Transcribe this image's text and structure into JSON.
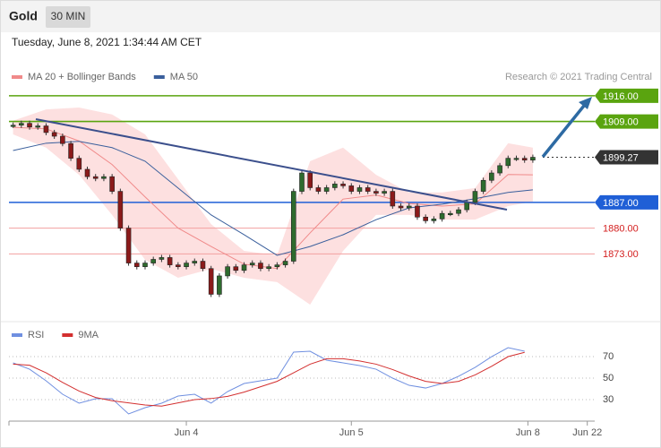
{
  "chart_data": [
    {
      "type": "candlestick",
      "title": "Gold",
      "timeframe": "30 MIN",
      "subtitle": "Tuesday, June 8, 2021 1:34:44 AM CET",
      "credit": "Research © 2021 Trading Central",
      "xlim": [
        -0.5,
        70.5
      ],
      "ylim": [
        1854.8,
        1932.3
      ],
      "up_color": "#2e6b2e",
      "down_color": "#8b1a1a",
      "x": [
        0,
        1,
        2,
        3,
        4,
        5,
        6,
        7,
        8,
        9,
        10,
        11,
        12,
        13,
        14,
        15,
        16,
        17,
        18,
        19,
        20,
        21,
        22,
        23,
        24,
        25,
        26,
        27,
        28,
        29,
        30,
        31,
        32,
        33,
        34,
        35,
        36,
        37,
        38,
        39,
        40,
        41,
        42,
        43,
        44,
        45,
        46,
        47,
        48,
        49,
        50,
        51,
        52,
        53,
        54,
        55,
        56,
        57,
        58,
        59,
        60,
        61,
        62,
        63
      ],
      "close": [
        1908,
        1908.5,
        1907.5,
        1907.8,
        1906,
        1905,
        1903,
        1899,
        1896,
        1894,
        1893.5,
        1894,
        1890,
        1880,
        1870.5,
        1869.5,
        1870.5,
        1871.5,
        1872,
        1870,
        1869.5,
        1870.5,
        1871,
        1869,
        1862,
        1867,
        1869.5,
        1868.5,
        1870,
        1870.5,
        1869,
        1869.5,
        1870,
        1871,
        1890,
        1895,
        1891,
        1890,
        1891,
        1892,
        1891.5,
        1890,
        1891,
        1890,
        1889.5,
        1890,
        1886,
        1885.5,
        1886,
        1883,
        1882,
        1882.5,
        1884,
        1884,
        1885,
        1887,
        1890,
        1893,
        1895,
        1897,
        1899,
        1899,
        1898.5,
        1899.27
      ],
      "series": [
        {
          "name": "MA 20 + Bollinger Bands",
          "color": "#f08a8a",
          "band_color": "#fde0e0",
          "x": [
            0,
            4,
            8,
            12,
            16,
            20,
            24,
            28,
            32,
            36,
            40,
            44,
            48,
            52,
            56,
            60,
            63
          ],
          "values": [
            1907.4,
            1907,
            1903.7,
            1897.3,
            1888.5,
            1880,
            1875,
            1870.2,
            1869,
            1878.7,
            1887.9,
            1889,
            1886.7,
            1886,
            1886.6,
            1894.6,
            1894.5
          ],
          "upper": [
            1909.2,
            1912.3,
            1912.8,
            1910.9,
            1905.5,
            1893.3,
            1881.1,
            1873.8,
            1872.6,
            1898.2,
            1901.9,
            1894.5,
            1889.7,
            1889.7,
            1890.9,
            1903.1,
            1901.9
          ],
          "lower": [
            1905.5,
            1901.9,
            1894.5,
            1883.6,
            1871.4,
            1866.5,
            1868.9,
            1866.5,
            1865.3,
            1859.2,
            1873.8,
            1883.6,
            1883.6,
            1882.3,
            1882.3,
            1886,
            1887.2
          ]
        },
        {
          "name": "MA 50",
          "color": "#3a5f9c",
          "x": [
            0,
            4,
            8,
            12,
            16,
            20,
            24,
            28,
            32,
            36,
            40,
            44,
            48,
            52,
            56,
            60,
            63
          ],
          "values": [
            1901.1,
            1903.1,
            1903.6,
            1901.9,
            1898.2,
            1890.9,
            1883.6,
            1878.2,
            1872.6,
            1875,
            1878.2,
            1882.3,
            1885.5,
            1886.5,
            1888,
            1889.7,
            1890.4
          ]
        }
      ],
      "levels": [
        {
          "value": 1916,
          "label": "1916.00",
          "color": "#5aa40f",
          "style": "box",
          "line": "solid"
        },
        {
          "value": 1909,
          "label": "1909.00",
          "color": "#5aa40f",
          "style": "box",
          "line": "solid"
        },
        {
          "value": 1899.27,
          "label": "1899.27",
          "color": "#333333",
          "style": "box",
          "line": "dotted"
        },
        {
          "value": 1887,
          "label": "1887.00",
          "color": "#1f5fd6",
          "style": "box",
          "line": "solid"
        },
        {
          "value": 1880,
          "label": "1880.00",
          "color": "#d42020",
          "style": "text",
          "line": "solid"
        },
        {
          "value": 1873,
          "label": "1873.00",
          "color": "#d42020",
          "style": "text",
          "line": "solid"
        }
      ]
    },
    {
      "type": "line",
      "xlim": [
        -0.5,
        70.5
      ],
      "ylim": [
        10,
        101.7
      ],
      "yticks": [
        30,
        50,
        70
      ],
      "grid": true,
      "xticks": [
        {
          "value": 21,
          "label": "Jun 4"
        },
        {
          "value": 41,
          "label": "Jun 5"
        },
        {
          "value": 62.4,
          "label": "Jun 8"
        },
        {
          "value": 69.6,
          "label": "Jun 22"
        }
      ],
      "series": [
        {
          "name": "RSI",
          "color": "#6f8fe0",
          "x": [
            0,
            2,
            4,
            6,
            8,
            10,
            12,
            14,
            16,
            18,
            20,
            22,
            24,
            26,
            28,
            30,
            32,
            34,
            36,
            38,
            40,
            42,
            44,
            46,
            48,
            50,
            52,
            54,
            56,
            58,
            60,
            62
          ],
          "values": [
            64.2,
            58.3,
            47.5,
            35,
            26.7,
            30.8,
            30.8,
            16.7,
            22.5,
            26.7,
            33.3,
            35,
            26.7,
            37.5,
            45,
            47.5,
            50,
            74.2,
            75,
            66.7,
            64.2,
            61.7,
            58.3,
            50,
            43.3,
            40.8,
            45,
            51.7,
            60,
            70,
            78.3,
            75
          ]
        },
        {
          "name": "9MA",
          "color": "#d32f2f",
          "x": [
            0,
            2,
            4,
            6,
            8,
            10,
            12,
            14,
            16,
            18,
            20,
            22,
            24,
            26,
            28,
            30,
            32,
            34,
            36,
            38,
            40,
            42,
            44,
            46,
            48,
            50,
            52,
            54,
            56,
            58,
            60,
            62
          ],
          "values": [
            63,
            62,
            55,
            46,
            38,
            32,
            29,
            27,
            25,
            24,
            27,
            30,
            31,
            33,
            37,
            42,
            47,
            55,
            63,
            68,
            68,
            66,
            63,
            58,
            52,
            47,
            45,
            47,
            53,
            61,
            70,
            74
          ]
        }
      ]
    }
  ]
}
